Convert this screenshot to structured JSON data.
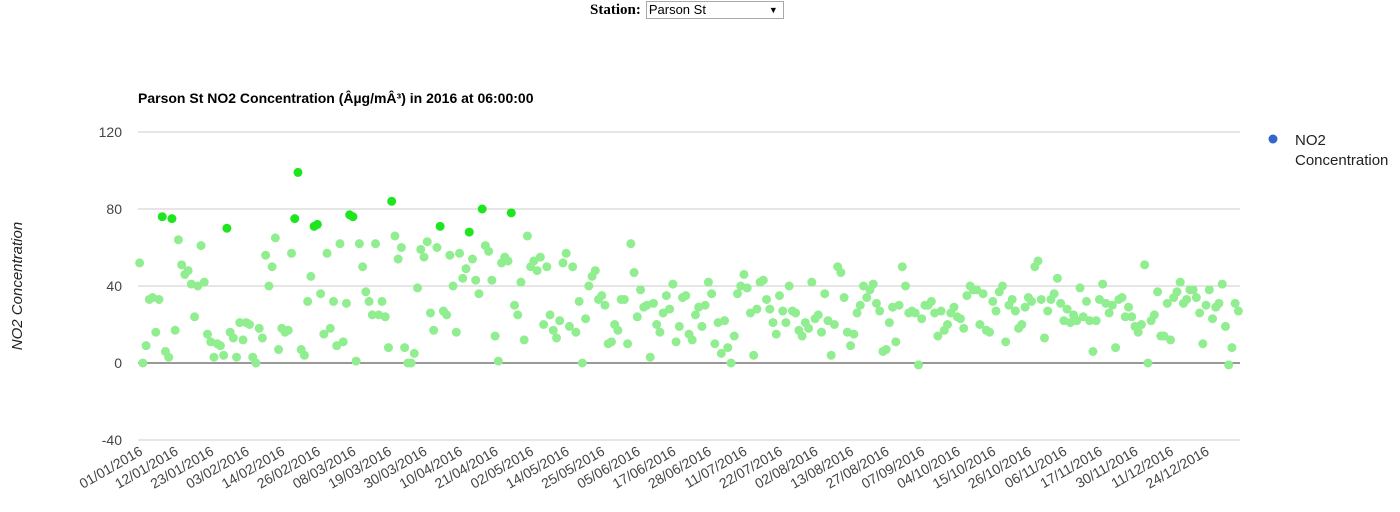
{
  "station_selector": {
    "label": "Station:",
    "value": "Parson St"
  },
  "chart_data": {
    "type": "scatter",
    "title": "Parson St NO2 Concentration (Âµg/mÂ³) in 2016 at 06:00:00",
    "y_label": "NO2 Concentration",
    "legend_position": "right",
    "series": [
      {
        "name": "NO2 Concentration",
        "color": "#3366cc"
      }
    ],
    "point_color": "#90ee90",
    "highlight_color": "#1ee61e",
    "highlight_above": 66,
    "ylim": [
      -40,
      120
    ],
    "yticks": [
      -40,
      0,
      40,
      80,
      120
    ],
    "grid": true,
    "categories": [
      "01/01/2016",
      null,
      null,
      null,
      null,
      null,
      null,
      null,
      null,
      null,
      null,
      "12/01/2016",
      null,
      null,
      null,
      null,
      null,
      null,
      null,
      null,
      null,
      null,
      "23/01/2016",
      null,
      null,
      null,
      null,
      null,
      null,
      null,
      null,
      null,
      null,
      "03/02/2016",
      null,
      null,
      null,
      null,
      null,
      null,
      null,
      null,
      null,
      null,
      "14/02/2016",
      null,
      null,
      null,
      null,
      null,
      null,
      null,
      null,
      null,
      null,
      "26/02/2016",
      null,
      null,
      null,
      null,
      null,
      null,
      null,
      null,
      null,
      null,
      "08/03/2016",
      null,
      null,
      null,
      null,
      null,
      null,
      null,
      null,
      null,
      null,
      "19/03/2016",
      null,
      null,
      null,
      null,
      null,
      null,
      null,
      null,
      null,
      null,
      "30/03/2016",
      null,
      null,
      null,
      null,
      null,
      null,
      null,
      null,
      null,
      null,
      "10/04/2016",
      null,
      null,
      null,
      null,
      null,
      null,
      null,
      null,
      null,
      null,
      "21/04/2016",
      null,
      null,
      null,
      null,
      null,
      null,
      null,
      null,
      null,
      null,
      "02/05/2016",
      null,
      null,
      null,
      null,
      null,
      null,
      null,
      null,
      null,
      null,
      "14/05/2016",
      null,
      null,
      null,
      null,
      null,
      null,
      null,
      null,
      null,
      null,
      "25/05/2016",
      null,
      null,
      null,
      null,
      null,
      null,
      null,
      null,
      null,
      null,
      "05/06/2016",
      null,
      null,
      null,
      null,
      null,
      null,
      null,
      null,
      null,
      null,
      "17/06/2016",
      null,
      null,
      null,
      null,
      null,
      null,
      null,
      null,
      null,
      null,
      "28/06/2016",
      null,
      null,
      null,
      null,
      null,
      null,
      null,
      null,
      null,
      null,
      "11/07/2016",
      null,
      null,
      null,
      null,
      null,
      null,
      null,
      null,
      null,
      null,
      "22/07/2016",
      null,
      null,
      null,
      null,
      null,
      null,
      null,
      null,
      null,
      null,
      "02/08/2016",
      null,
      null,
      null,
      null,
      null,
      null,
      null,
      null,
      null,
      null,
      "13/08/2016",
      null,
      null,
      null,
      null,
      null,
      null,
      null,
      null,
      null,
      null,
      "27/08/2016",
      null,
      null,
      null,
      null,
      null,
      null,
      null,
      null,
      null,
      null,
      "07/09/2016",
      null,
      null,
      null,
      null,
      null,
      null,
      null,
      null,
      null,
      null,
      "04/10/2016",
      null,
      null,
      null,
      null,
      null,
      null,
      null,
      null,
      null,
      null,
      "15/10/2016",
      null,
      null,
      null,
      null,
      null,
      null,
      null,
      null,
      null,
      null,
      "26/10/2016",
      null,
      null,
      null,
      null,
      null,
      null,
      null,
      null,
      null,
      null,
      "06/11/2016",
      null,
      null,
      null,
      null,
      null,
      null,
      null,
      null,
      null,
      null,
      "17/11/2016",
      null,
      null,
      null,
      null,
      null,
      null,
      null,
      null,
      null,
      null,
      "30/11/2016",
      null,
      null,
      null,
      null,
      null,
      null,
      null,
      null,
      null,
      null,
      "11/12/2016",
      null,
      null,
      null,
      null,
      null,
      null,
      null,
      null,
      null,
      null,
      "24/12/2016",
      null,
      null,
      null,
      null,
      null,
      null,
      null,
      null,
      null,
      null
    ],
    "values": [
      52,
      0,
      9,
      33,
      34,
      16,
      33,
      76,
      6,
      3,
      75,
      17,
      64,
      51,
      46,
      48,
      41,
      24,
      40,
      61,
      42,
      15,
      11,
      3,
      10,
      9,
      4,
      70,
      16,
      13,
      3,
      21,
      12,
      21,
      20,
      3,
      0,
      18,
      13,
      56,
      40,
      50,
      65,
      7,
      18,
      16,
      17,
      57,
      75,
      99,
      7,
      4,
      32,
      45,
      71,
      72,
      36,
      15,
      57,
      18,
      32,
      9,
      62,
      11,
      31,
      77,
      76,
      1,
      62,
      50,
      37,
      32,
      25,
      62,
      25,
      32,
      24,
      8,
      84,
      66,
      54,
      60,
      8,
      0,
      0,
      5,
      39,
      59,
      55,
      63,
      26,
      17,
      60,
      71,
      27,
      25,
      56,
      40,
      16,
      57,
      44,
      49,
      68,
      54,
      43,
      36,
      80,
      61,
      58,
      43,
      14,
      1,
      52,
      55,
      53,
      78,
      30,
      25,
      42,
      12,
      66,
      50,
      53,
      48,
      55,
      20,
      50,
      25,
      17,
      13,
      22,
      52,
      57,
      19,
      50,
      16,
      32,
      0,
      23,
      40,
      45,
      48,
      33,
      35,
      30,
      10,
      11,
      20,
      17,
      33,
      33,
      10,
      62,
      47,
      24,
      38,
      29,
      30,
      3,
      31,
      20,
      16,
      26,
      35,
      28,
      41,
      11,
      19,
      34,
      35,
      15,
      12,
      25,
      29,
      19,
      30,
      42,
      36,
      10,
      21,
      5,
      22,
      8,
      0,
      14,
      36,
      40,
      46,
      39,
      26,
      4,
      28,
      42,
      43,
      33,
      28,
      21,
      15,
      35,
      27,
      21,
      40,
      27,
      26,
      17,
      14,
      21,
      18,
      42,
      23,
      25,
      16,
      36,
      22,
      4,
      20,
      50,
      47,
      34,
      16,
      9,
      15,
      26,
      30,
      40,
      34,
      38,
      41,
      31,
      27,
      6,
      7,
      21,
      29,
      11,
      30,
      50,
      40,
      26,
      27,
      26,
      -1,
      23,
      30,
      30,
      32,
      26,
      14,
      27,
      17,
      20,
      26,
      29,
      24,
      23,
      18,
      35,
      40,
      38,
      38,
      20,
      36,
      17,
      16,
      32,
      27,
      37,
      40,
      11,
      30,
      33,
      27,
      18,
      20,
      29,
      34,
      32,
      50,
      53,
      33,
      13,
      27,
      33,
      36,
      44,
      31,
      22,
      28,
      21,
      25,
      22,
      39,
      24,
      32,
      22,
      6,
      22,
      33,
      41,
      31,
      26,
      30,
      8,
      33,
      34,
      24,
      29,
      24,
      19,
      16,
      20,
      51,
      0,
      22,
      25,
      37,
      14,
      14,
      31,
      12,
      34,
      37,
      42,
      31,
      33,
      38,
      38,
      34,
      26,
      10,
      30,
      38,
      23,
      29,
      31,
      41,
      19,
      -1,
      8,
      31,
      27
    ]
  }
}
